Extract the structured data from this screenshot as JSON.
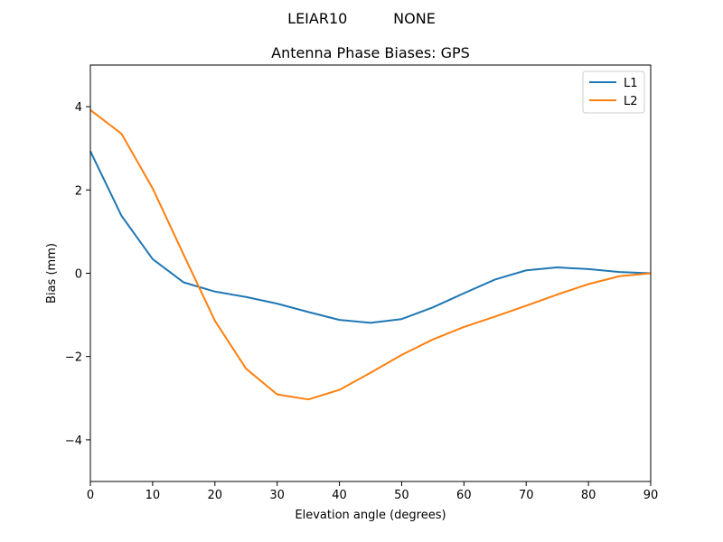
{
  "chart_data": {
    "type": "line",
    "suptitle": "LEIAR10          NONE",
    "title": "Antenna Phase Biases: GPS",
    "xlabel": "Elevation angle (degrees)",
    "ylabel": "Bias (mm)",
    "xlim": [
      0,
      90
    ],
    "ylim": [
      -5,
      5
    ],
    "xticks": [
      0,
      10,
      20,
      30,
      40,
      50,
      60,
      70,
      80,
      90
    ],
    "xtick_labels": [
      "0",
      "10",
      "20",
      "30",
      "40",
      "50",
      "60",
      "70",
      "80",
      "90"
    ],
    "yticks": [
      -4,
      -2,
      0,
      2,
      4
    ],
    "ytick_labels": [
      "−4",
      "−2",
      "0",
      "2",
      "4"
    ],
    "grid": false,
    "legend_position": "top-right",
    "x": [
      0,
      5,
      10,
      15,
      20,
      25,
      30,
      35,
      40,
      45,
      50,
      55,
      60,
      65,
      70,
      75,
      80,
      85,
      90
    ],
    "series": [
      {
        "name": "L1",
        "color": "#1f77b4",
        "values": [
          2.93,
          1.38,
          0.34,
          -0.22,
          -0.44,
          -0.57,
          -0.73,
          -0.93,
          -1.12,
          -1.19,
          -1.1,
          -0.82,
          -0.48,
          -0.15,
          0.07,
          0.14,
          0.1,
          0.03,
          0.0
        ]
      },
      {
        "name": "L2",
        "color": "#ff7f0e",
        "values": [
          3.92,
          3.35,
          2.04,
          0.44,
          -1.14,
          -2.29,
          -2.91,
          -3.03,
          -2.8,
          -2.39,
          -1.96,
          -1.59,
          -1.29,
          -1.04,
          -0.78,
          -0.51,
          -0.26,
          -0.07,
          0.0
        ]
      }
    ]
  }
}
